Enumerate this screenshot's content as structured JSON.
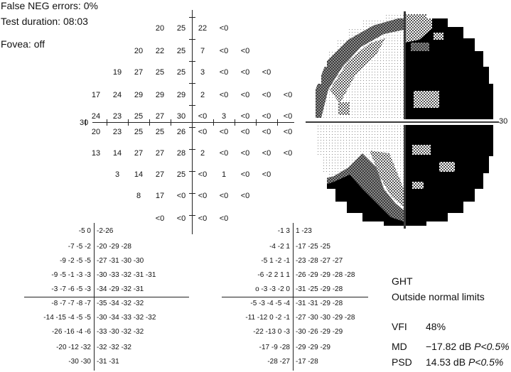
{
  "header": {
    "false_neg": "False NEG errors: 0%",
    "duration": "Test duration: 08:03",
    "fovea": "Fovea: off"
  },
  "threshold_rows": [
    [
      "20",
      "25",
      "22",
      "<0"
    ],
    [
      "20",
      "22",
      "25",
      "7",
      "<0",
      "<0"
    ],
    [
      "19",
      "27",
      "25",
      "25",
      "3",
      "<0",
      "<0",
      "<0"
    ],
    [
      "17",
      "24",
      "29",
      "29",
      "29",
      "2",
      "<0",
      "<0",
      "<0",
      "<0"
    ],
    [
      "24",
      "23",
      "25",
      "27",
      "30",
      "<0",
      "3",
      "<0",
      "<0",
      "<0"
    ],
    [
      "20",
      "23",
      "25",
      "25",
      "26",
      "<0",
      "<0",
      "<0",
      "<0",
      "<0"
    ],
    [
      "13",
      "14",
      "27",
      "27",
      "28",
      "2",
      "<0",
      "<0",
      "<0",
      "<0"
    ],
    [
      "3",
      "14",
      "27",
      "25",
      "<0",
      "1",
      "<0",
      "<0"
    ],
    [
      "8",
      "17",
      "<0",
      "<0",
      "<0",
      "<0"
    ],
    [
      "<0",
      "<0",
      "<0",
      "<0"
    ]
  ],
  "axis_label_left": "30",
  "axis_label_right": "30",
  "total_deviation_rows": [
    [
      "-5  0",
      "-2-26"
    ],
    [
      "-7  -5  -2",
      "-20 -29 -28"
    ],
    [
      "-9  -2  -5  -5",
      "-27 -31 -30 -30"
    ],
    [
      "-9  -5  -1  -3  -3",
      "-30 -33 -32 -31 -31"
    ],
    [
      "-3  -7  -6  -5  -3",
      "-34 -29       -32 -31"
    ],
    [
      "-8  -7  -7  -8  -7",
      "-35 -34       -32 -32"
    ],
    [
      "-14 -15  -4  -5  -5",
      "-30 -34 -33 -32 -32"
    ],
    [
      "-26 -16  -4  -6",
      "-33 -30 -32 -32"
    ],
    [
      "-20 -12 -32",
      "-32 -32 -32"
    ],
    [
      "-30 -30",
      "-31 -31"
    ]
  ],
  "pattern_deviation_rows": [
    [
      "-1  3",
      "1 -23"
    ],
    [
      "-4  -2  1",
      "-17 -25 -25"
    ],
    [
      "-5  1  -2  -1",
      "-23 -28 -27 -27"
    ],
    [
      "-6  -2  2  1  1",
      "-26 -29 -29 -28 -28"
    ],
    [
      "o  -3  -3  -2  0",
      "-31 -25       -29 -28"
    ],
    [
      "-5  -3  -4  -5  -4",
      "-31 -31       -29 -28"
    ],
    [
      "-11 -12  0  -2  -1",
      "-27 -30 -30 -29 -28"
    ],
    [
      "-22 -13  0  -3",
      "-30 -26 -29 -29"
    ],
    [
      "-17  -9 -28",
      "-29 -29 -29"
    ],
    [
      "-28 -27",
      "-17 -28"
    ]
  ],
  "summary": {
    "ght_label": "GHT",
    "ght_value": "Outside normal limits",
    "vfi_label": "VFI",
    "vfi_value": "48%",
    "md_label": "MD",
    "md_value": "−17.82 dB",
    "md_p": "P<0.5%",
    "psd_label": "PSD",
    "psd_value": "14.53 dB",
    "psd_p": "P<0.5%"
  },
  "colors": {
    "text": "#111111",
    "dark_field": "#000000",
    "mid_field": "#9a9a9a",
    "light_field": "#d8d8d8"
  }
}
